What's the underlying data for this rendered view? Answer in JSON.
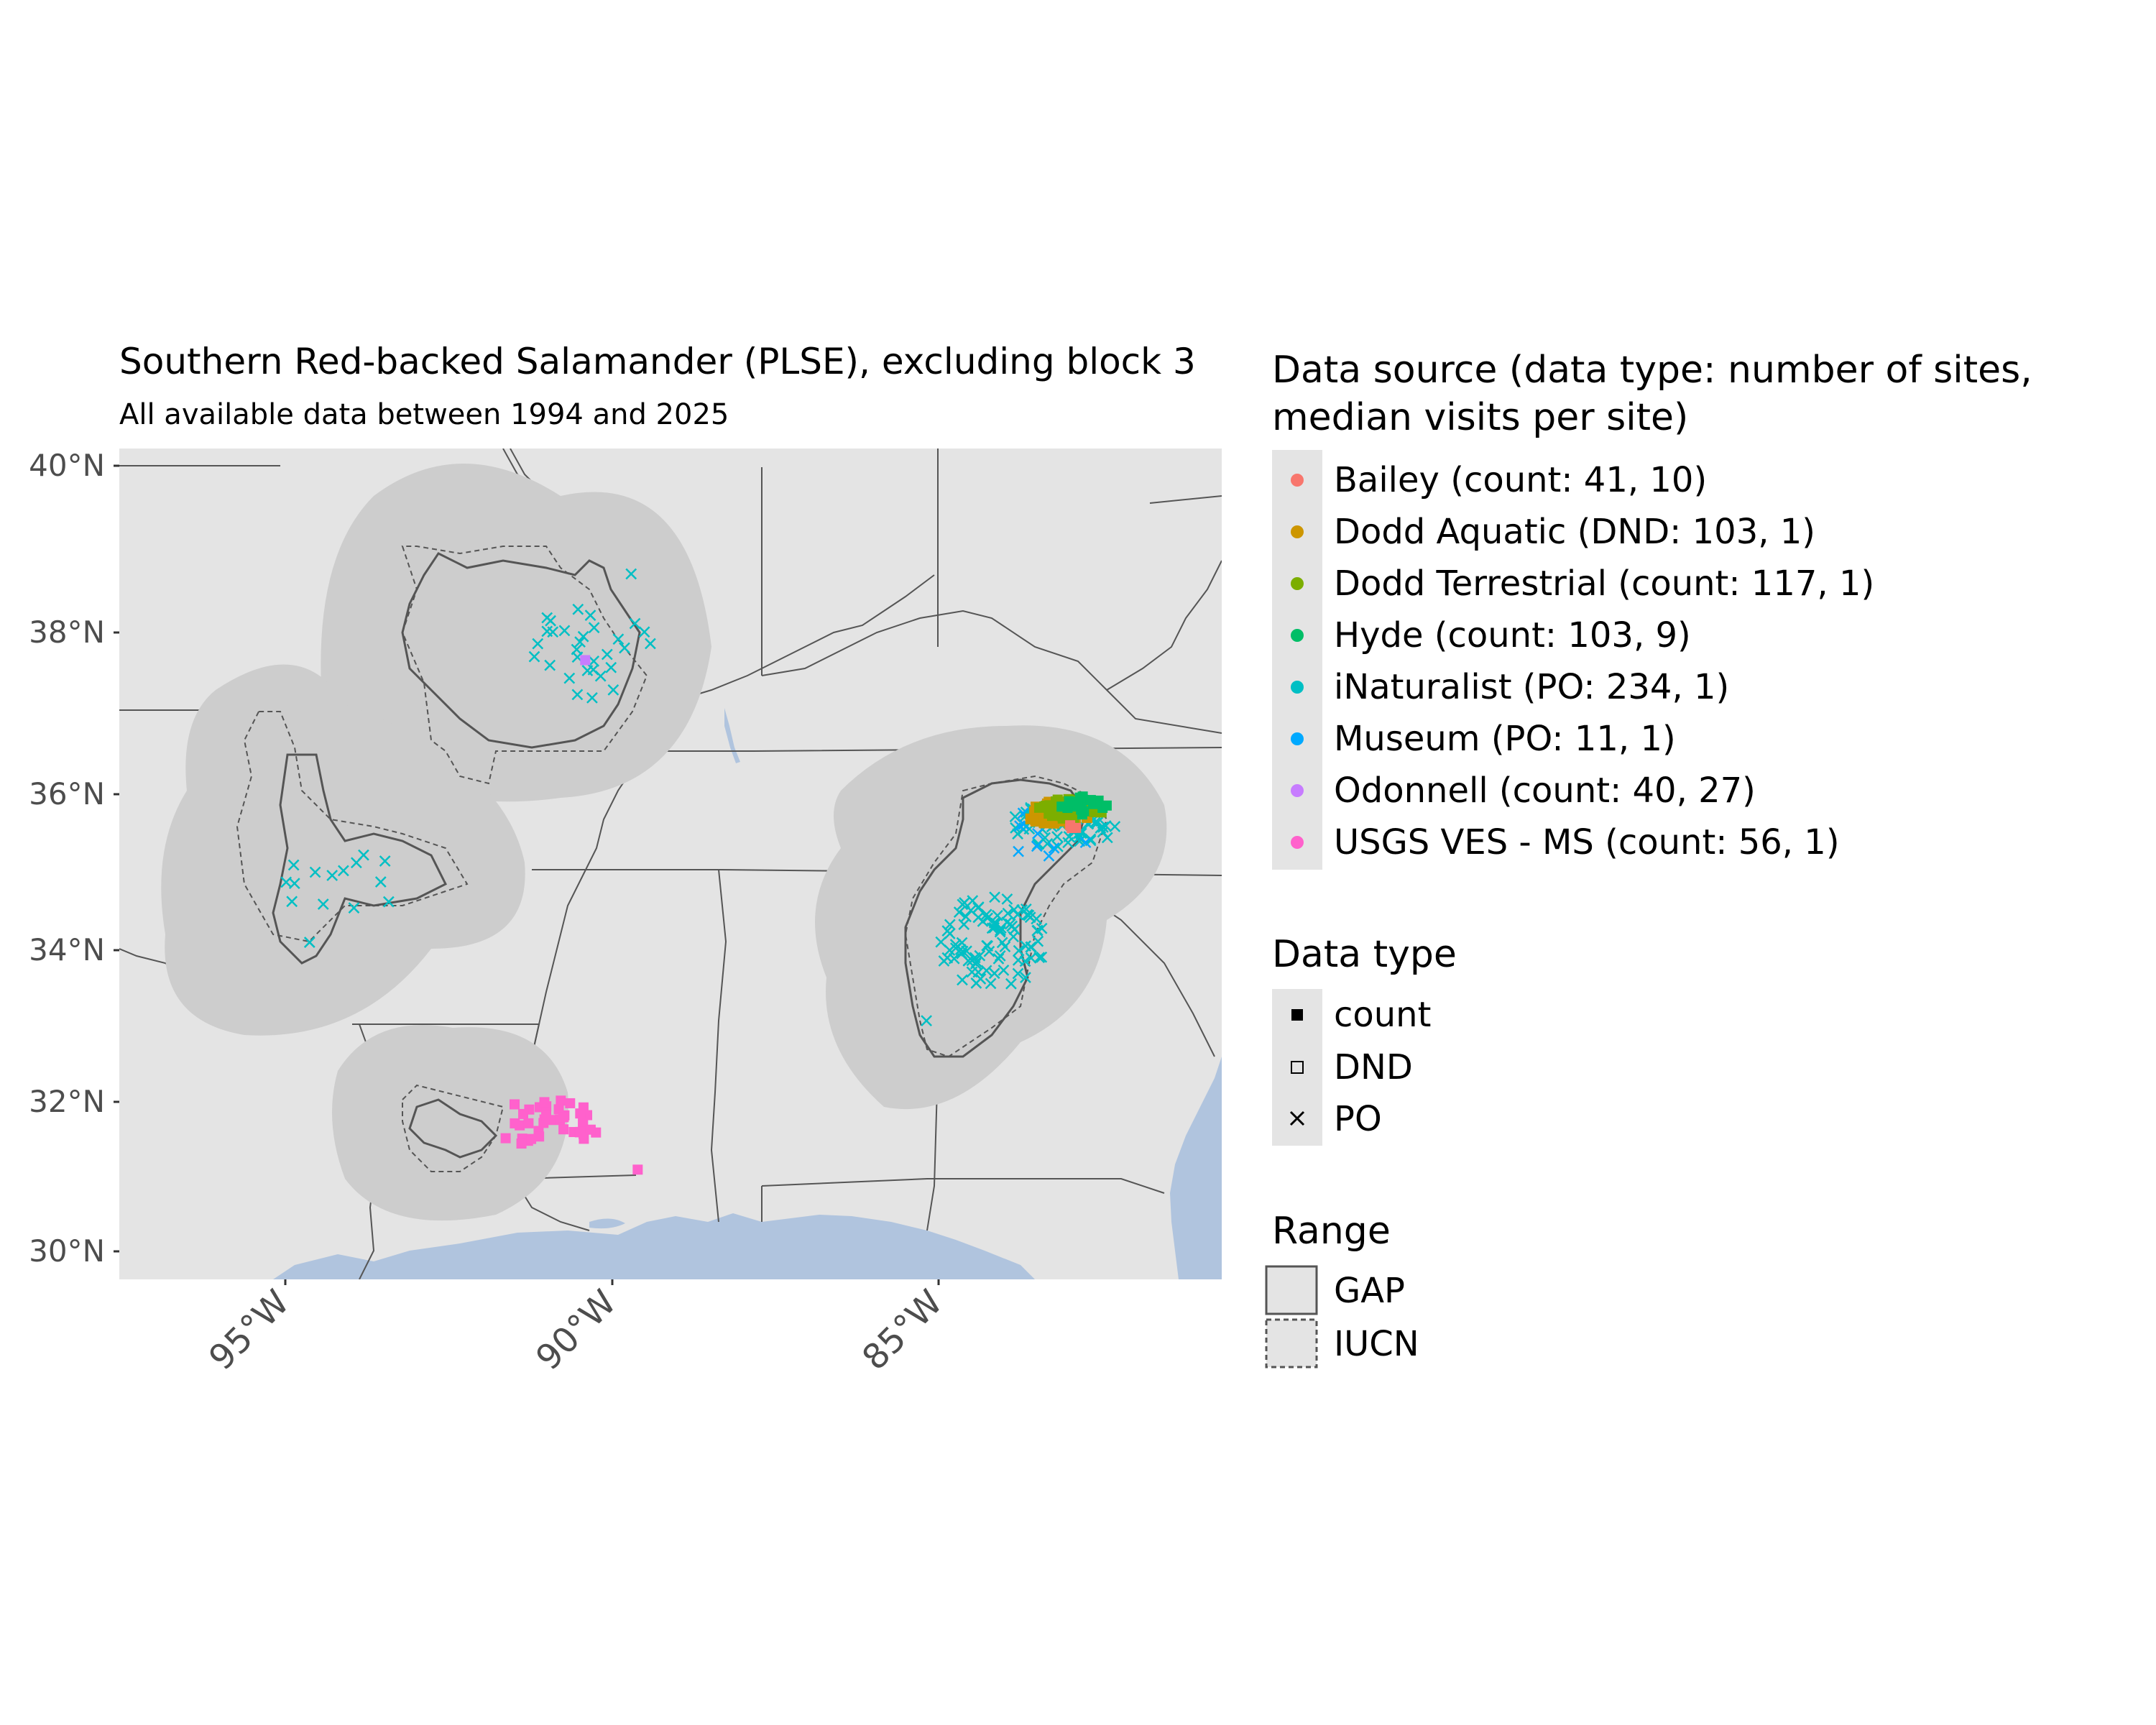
{
  "title": "Southern Red-backed Salamander (PLSE), excluding block 3",
  "subtitle": "All available data between 1994 and 2025",
  "axes": {
    "y_ticks": [
      "40°N",
      "38°N",
      "36°N",
      "34°N",
      "32°N",
      "30°N"
    ],
    "x_ticks": [
      "95°W",
      "90°W",
      "85°W"
    ]
  },
  "legend_source": {
    "title_line1": "Data source (data type: number of sites,",
    "title_line2": "median visits per site)",
    "items": [
      {
        "label": "Bailey (count: 41, 10)",
        "color": "#F8766D"
      },
      {
        "label": "Dodd Aquatic (DND: 103, 1)",
        "color": "#CD9600"
      },
      {
        "label": "Dodd Terrestrial (count: 117, 1)",
        "color": "#7CAE00"
      },
      {
        "label": "Hyde (count: 103, 9)",
        "color": "#00BE67"
      },
      {
        "label": "iNaturalist (PO: 234, 1)",
        "color": "#00BFC4"
      },
      {
        "label": "Museum (PO: 11, 1)",
        "color": "#00A9FF"
      },
      {
        "label": "Odonnell (count: 40, 27)",
        "color": "#C77CFF"
      },
      {
        "label": "USGS VES - MS (count: 56, 1)",
        "color": "#FF61CC"
      }
    ]
  },
  "legend_type": {
    "title": "Data type",
    "items": [
      {
        "label": "count",
        "shape": "filled-square"
      },
      {
        "label": "DND",
        "shape": "open-square"
      },
      {
        "label": "PO",
        "shape": "cross"
      }
    ]
  },
  "legend_range": {
    "title": "Range",
    "items": [
      {
        "label": "GAP",
        "line": "solid"
      },
      {
        "label": "IUCN",
        "line": "dashed"
      }
    ]
  },
  "colors": {
    "land": "#E4E4E4",
    "buffer": "#CDCDCD",
    "water": "#B0C4DE",
    "border": "#555555",
    "range_line": "#555555"
  },
  "chart_data": {
    "type": "scatter",
    "projection": "lon/lat",
    "xlim": [
      -97.8,
      -81.0
    ],
    "ylim": [
      29.6,
      40.2
    ],
    "x_ticks": [
      -95,
      -90,
      -85
    ],
    "y_ticks": [
      40,
      38,
      36,
      34,
      32,
      30
    ],
    "point_clusters": [
      {
        "source": "iNaturalist",
        "type": "PO",
        "center": [
          -90.6,
          37.6
        ],
        "spread": [
          1.1,
          0.6
        ],
        "n": 30,
        "seed": 11
      },
      {
        "source": "iNaturalist",
        "type": "PO",
        "center": [
          -94.4,
          34.6
        ],
        "spread": [
          1.0,
          0.5
        ],
        "n": 14,
        "seed": 21
      },
      {
        "source": "iNaturalist",
        "type": "PO",
        "center": [
          -84.5,
          33.9
        ],
        "spread": [
          0.8,
          0.6
        ],
        "n": 90,
        "seed": 31
      },
      {
        "source": "iNaturalist",
        "type": "PO",
        "center": [
          -83.4,
          35.4
        ],
        "spread": [
          0.8,
          0.3
        ],
        "n": 60,
        "seed": 41
      },
      {
        "source": "Museum",
        "type": "PO",
        "center": [
          -83.6,
          35.3
        ],
        "spread": [
          0.7,
          0.4
        ],
        "n": 11,
        "seed": 51
      },
      {
        "source": "Dodd Aquatic",
        "type": "DND",
        "center": [
          -83.5,
          35.55
        ],
        "spread": [
          0.5,
          0.15
        ],
        "n": 40,
        "seed": 61
      },
      {
        "source": "Dodd Terrestrial",
        "type": "count",
        "center": [
          -83.3,
          35.6
        ],
        "spread": [
          0.5,
          0.15
        ],
        "n": 40,
        "seed": 71
      },
      {
        "source": "Hyde",
        "type": "count",
        "center": [
          -83.1,
          35.65
        ],
        "spread": [
          0.4,
          0.12
        ],
        "n": 20,
        "seed": 81
      },
      {
        "source": "Bailey",
        "type": "count",
        "center": [
          -83.3,
          35.35
        ],
        "spread": [
          0.1,
          0.06
        ],
        "n": 3,
        "seed": 91
      },
      {
        "source": "USGS VES - MS",
        "type": "count",
        "center": [
          -91.3,
          31.6
        ],
        "spread": [
          0.9,
          0.3
        ],
        "n": 40,
        "seed": 101
      }
    ],
    "points": [
      {
        "source": "Odonnell",
        "type": "count",
        "lon": -90.7,
        "lat": 37.5
      },
      {
        "source": "USGS VES - MS",
        "type": "count",
        "lon": -89.9,
        "lat": 31.0
      },
      {
        "source": "iNaturalist",
        "type": "PO",
        "lon": -90.0,
        "lat": 38.6
      },
      {
        "source": "iNaturalist",
        "type": "PO",
        "lon": -94.9,
        "lat": 33.9
      },
      {
        "source": "iNaturalist",
        "type": "PO",
        "lon": -85.5,
        "lat": 32.9
      }
    ]
  }
}
